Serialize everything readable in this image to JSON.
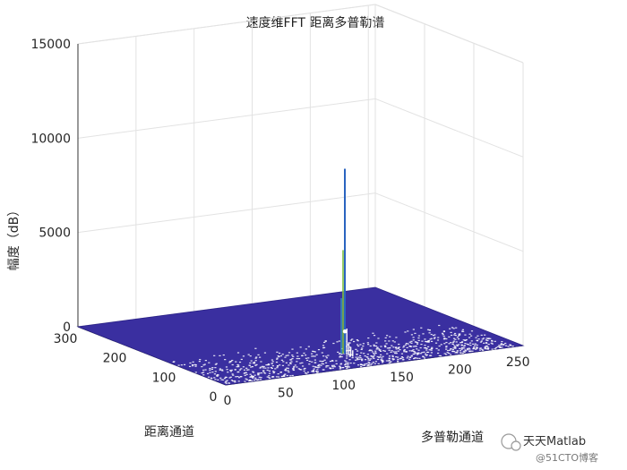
{
  "chart_data": {
    "type": "surface3d",
    "title": "速度维FFT 距离多普勒谱",
    "xlabel": "多普勒通道",
    "ylabel": "距离通道",
    "zlabel": "幅度（dB）",
    "xlim": [
      0,
      256
    ],
    "ylim": [
      0,
      300
    ],
    "zlim": [
      0,
      15000
    ],
    "x_ticks": [
      "0",
      "50",
      "100",
      "150",
      "200",
      "250"
    ],
    "y_ticks": [
      "0",
      "100",
      "200",
      "300"
    ],
    "z_ticks": [
      "0",
      "5000",
      "10000",
      "15000"
    ],
    "grid": true,
    "surface_color": "#3a2fa0",
    "peak": {
      "doppler_channel": 128,
      "range_channel": 60,
      "amplitude": 9800
    },
    "noise_floor": 0
  },
  "watermark": {
    "text": "天天Matlab",
    "sub": "@51CTO博客"
  }
}
